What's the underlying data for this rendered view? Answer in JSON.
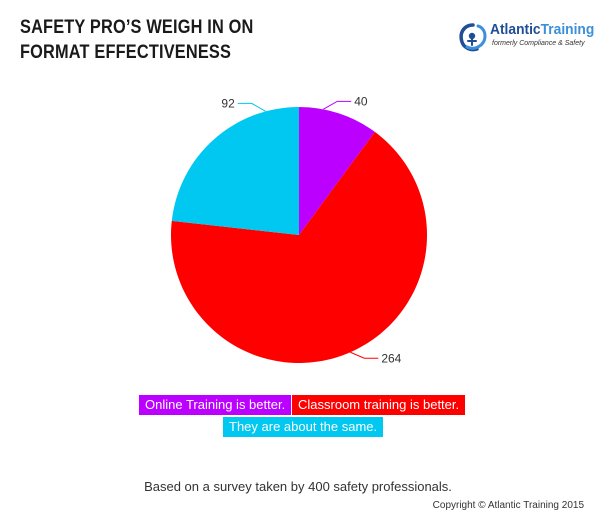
{
  "title_lines": [
    "SAFETY PRO’S WEIGH IN ON",
    "FORMAT EFFECTIVENESS"
  ],
  "logo": {
    "word1": "Atlantic",
    "word2": "Training",
    "tagline": "formerly Compliance & Safety"
  },
  "colors": {
    "online": "#bb00ff",
    "classroom": "#ff0000",
    "same": "#00c8f0"
  },
  "chart_data": {
    "type": "pie",
    "slices": [
      {
        "label": "Online Training is better.",
        "value": 40,
        "color": "#bb00ff"
      },
      {
        "label": "Classroom training is better.",
        "value": 264,
        "color": "#ff0000"
      },
      {
        "label": "They are about the same.",
        "value": 92,
        "color": "#00c8f0"
      }
    ]
  },
  "footnote": "Based on a survey taken by 400 safety professionals.",
  "copyright": "Copyright © Atlantic Training 2015"
}
